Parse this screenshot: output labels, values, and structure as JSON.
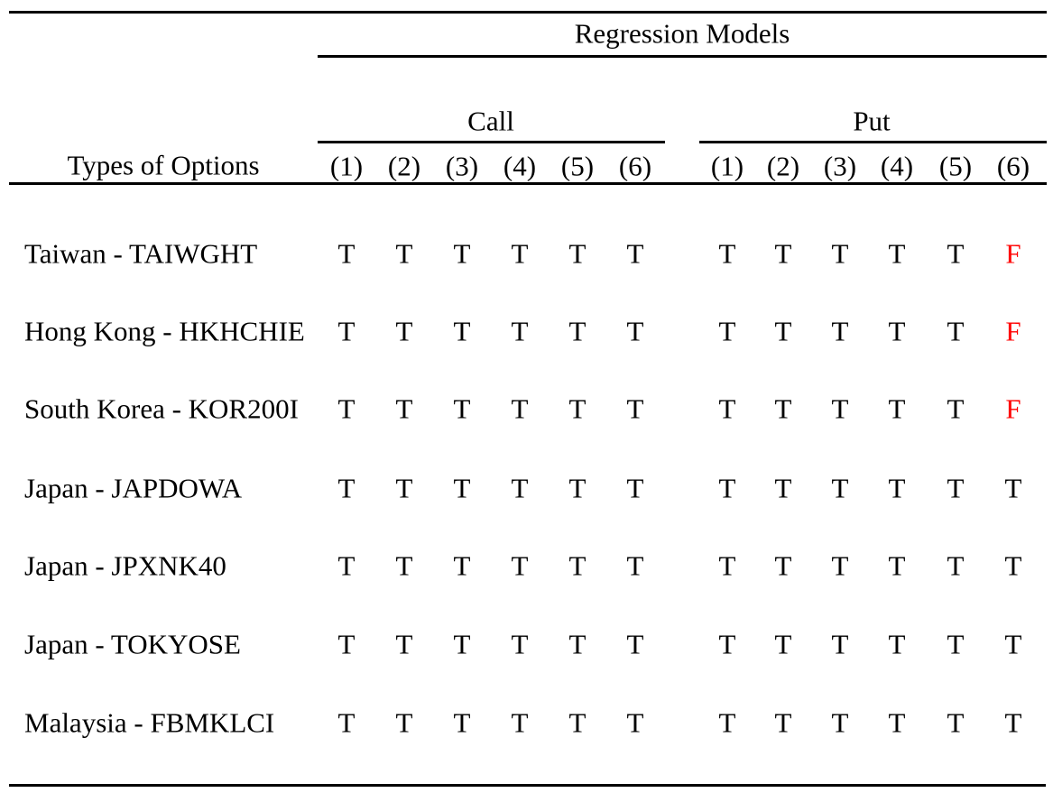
{
  "title": "Regression Models",
  "row_header": "Types of Options",
  "groups": {
    "call": "Call",
    "put": "Put"
  },
  "columns": [
    "(1)",
    "(2)",
    "(3)",
    "(4)",
    "(5)",
    "(6)"
  ],
  "rows": [
    {
      "label": "Taiwan - TAIWGHT",
      "call": [
        "T",
        "T",
        "T",
        "T",
        "T",
        "T"
      ],
      "put": [
        "T",
        "T",
        "T",
        "T",
        "T",
        "F"
      ]
    },
    {
      "label": "Hong Kong - HKHCHIE",
      "call": [
        "T",
        "T",
        "T",
        "T",
        "T",
        "T"
      ],
      "put": [
        "T",
        "T",
        "T",
        "T",
        "T",
        "F"
      ]
    },
    {
      "label": "South Korea - KOR200I",
      "call": [
        "T",
        "T",
        "T",
        "T",
        "T",
        "T"
      ],
      "put": [
        "T",
        "T",
        "T",
        "T",
        "T",
        "F"
      ]
    },
    {
      "label": "Japan - JAPDOWA",
      "call": [
        "T",
        "T",
        "T",
        "T",
        "T",
        "T"
      ],
      "put": [
        "T",
        "T",
        "T",
        "T",
        "T",
        "T"
      ]
    },
    {
      "label": "Japan - JPXNK40",
      "call": [
        "T",
        "T",
        "T",
        "T",
        "T",
        "T"
      ],
      "put": [
        "T",
        "T",
        "T",
        "T",
        "T",
        "T"
      ]
    },
    {
      "label": "Japan - TOKYOSE",
      "call": [
        "T",
        "T",
        "T",
        "T",
        "T",
        "T"
      ],
      "put": [
        "T",
        "T",
        "T",
        "T",
        "T",
        "T"
      ]
    },
    {
      "label": "Malaysia - FBMKLCI",
      "call": [
        "T",
        "T",
        "T",
        "T",
        "T",
        "T"
      ],
      "put": [
        "T",
        "T",
        "T",
        "T",
        "T",
        "T"
      ]
    }
  ],
  "markers": {
    "true": "T",
    "false": "F"
  },
  "colors": {
    "text": "#000000",
    "false_marker": "#ff0000",
    "background": "#ffffff",
    "rule": "#000000"
  }
}
